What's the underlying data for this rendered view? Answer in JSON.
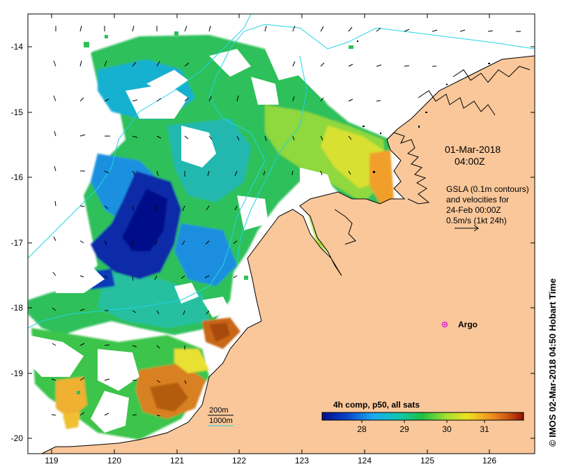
{
  "map": {
    "axes": {
      "lat_ticks": [
        "-14",
        "-15",
        "-16",
        "-17",
        "-18",
        "-19",
        "-20"
      ],
      "lon_ticks": [
        "119",
        "120",
        "121",
        "122",
        "123",
        "124",
        "125",
        "126"
      ]
    },
    "datetime": {
      "line1": "01-Mar-2018",
      "line2": "04:00Z"
    },
    "gsla": {
      "line1": "GSLA (0.1m contours)",
      "line2": "and velocities for",
      "line3": "24-Feb 00:00Z",
      "line4": "0.5m/s (1kt 24h)"
    },
    "argo_label": "Argo",
    "depth_legend": {
      "d200": "200m",
      "d1000": "1000m"
    },
    "colorbar": {
      "title": "4h comp, p50, all sats",
      "ticks": [
        "28",
        "29",
        "30",
        "31"
      ]
    },
    "side_credit": "© IMOS 02-Mar-2018 04:50 Hobart Time",
    "colors": {
      "land": "#f9c79a",
      "coast": "#000000",
      "isobath": "#22d3e6",
      "argo": "#e020e0"
    }
  }
}
